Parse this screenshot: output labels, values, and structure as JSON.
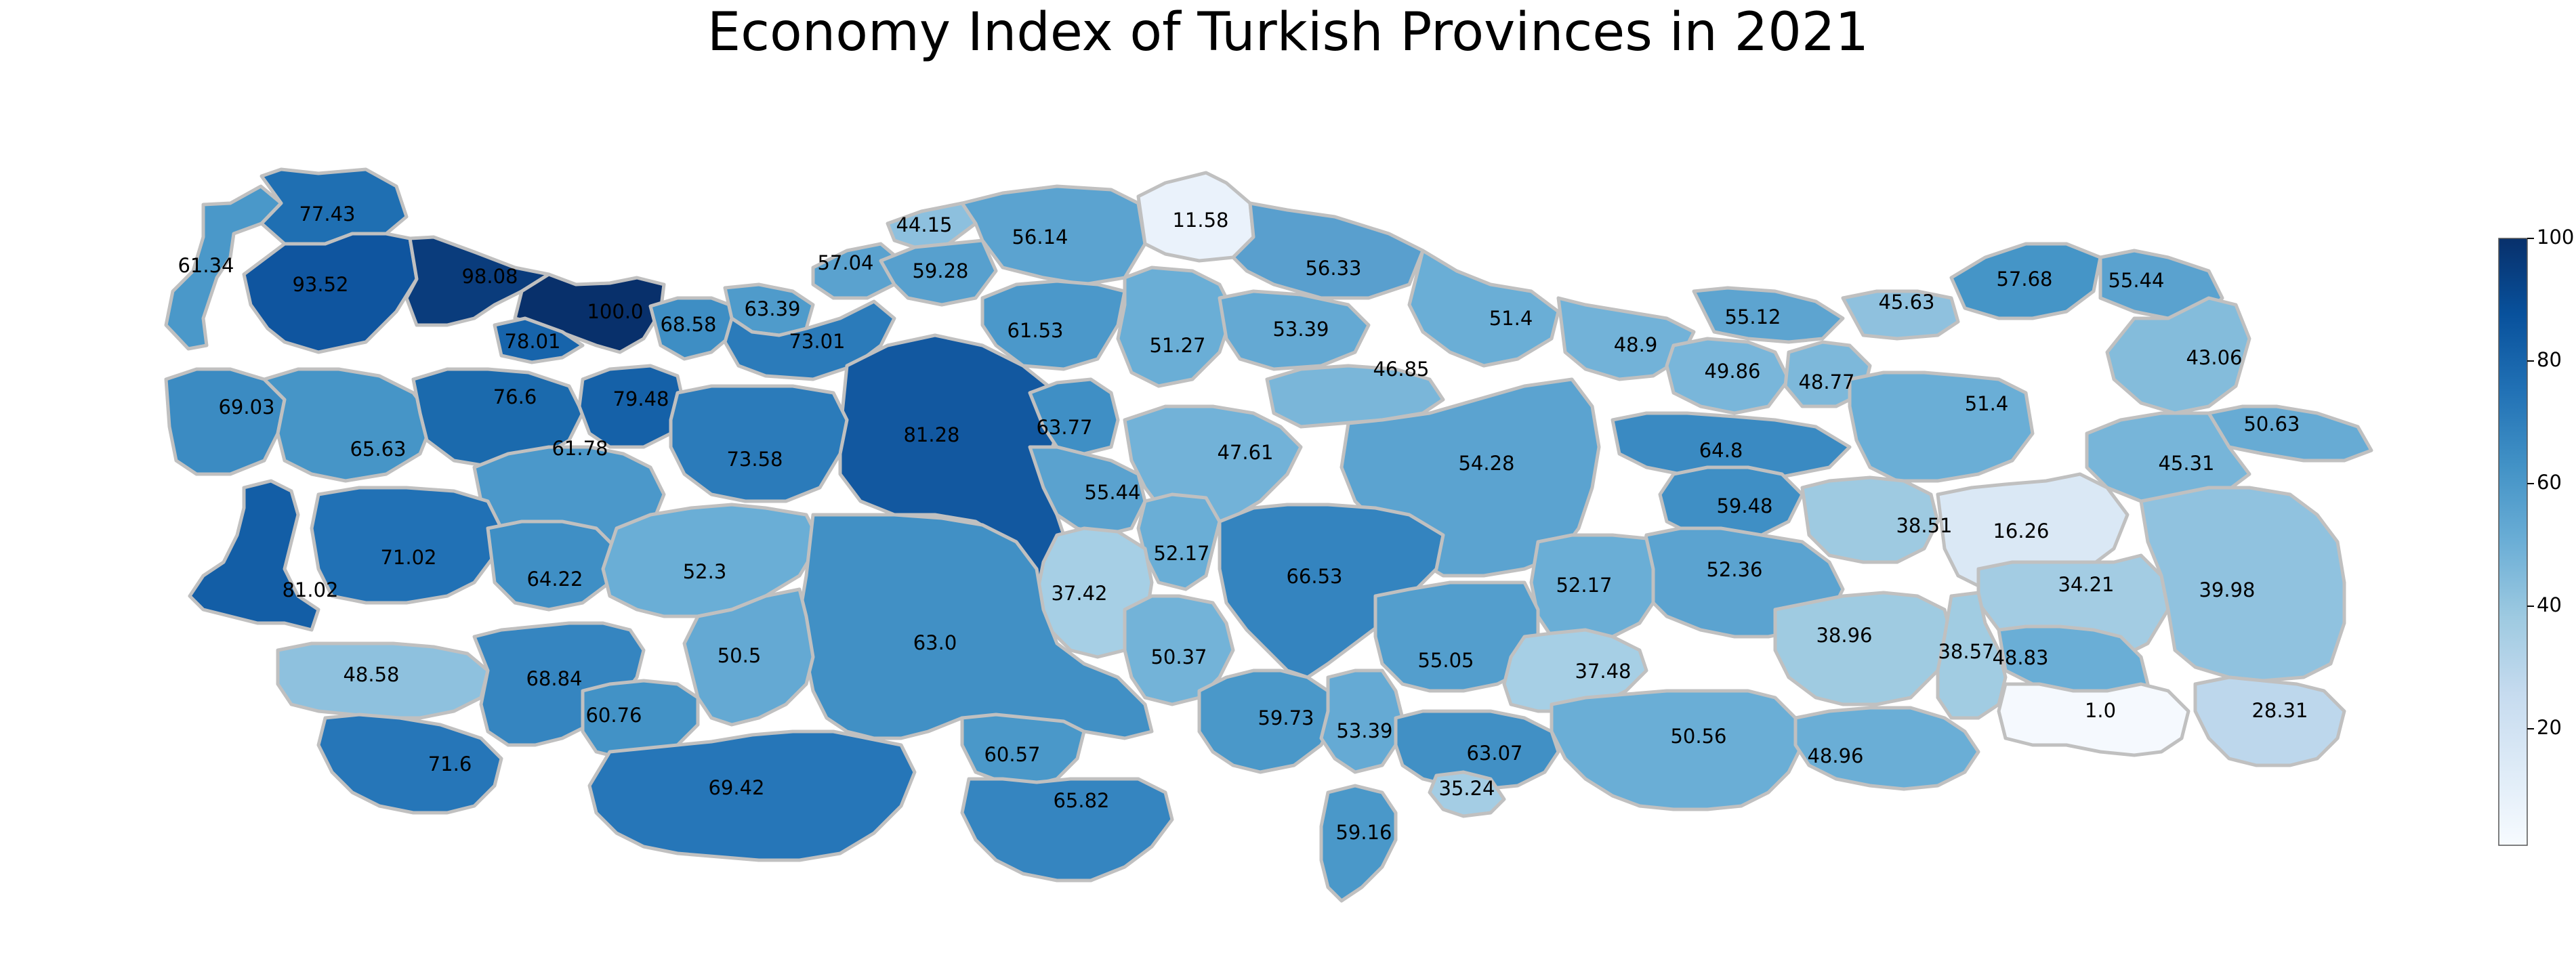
{
  "title": "Economy Index of Turkish Provinces in 2021",
  "colorbar": {
    "min": 1.0,
    "max": 100,
    "ticks": [
      "20",
      "40",
      "60",
      "80",
      "100"
    ],
    "tick_values": [
      20,
      40,
      60,
      80,
      100
    ],
    "colormap": "Blues",
    "color_stops": [
      "#f7fbff",
      "#deebf7",
      "#c6dbef",
      "#9ecae1",
      "#6baed6",
      "#4292c6",
      "#2171b5",
      "#08519c",
      "#08306b"
    ]
  },
  "province_values": [
    "77.43",
    "61.34",
    "93.52",
    "98.08",
    "100.0",
    "78.01",
    "68.58",
    "63.39",
    "57.04",
    "44.15",
    "59.28",
    "56.14",
    "11.58",
    "56.33",
    "73.01",
    "61.53",
    "51.27",
    "53.39",
    "51.4",
    "48.9",
    "55.12",
    "45.63",
    "57.68",
    "55.44",
    "43.06",
    "49.86",
    "48.77",
    "69.03",
    "65.63",
    "76.6",
    "79.48",
    "81.28",
    "63.77",
    "47.61",
    "46.85",
    "54.28",
    "64.8",
    "51.4",
    "50.63",
    "45.31",
    "73.58",
    "61.78",
    "55.44",
    "59.48",
    "38.51",
    "16.26",
    "71.02",
    "64.22",
    "52.3",
    "52.17",
    "66.53",
    "52.36",
    "34.21",
    "39.98",
    "81.02",
    "37.42",
    "63.0",
    "50.5",
    "52.17",
    "38.96",
    "38.57",
    "48.58",
    "68.84",
    "50.37",
    "55.05",
    "37.48",
    "48.83",
    "60.76",
    "59.73",
    "53.39",
    "1.0",
    "28.31",
    "71.6",
    "60.57",
    "50.56",
    "48.96",
    "63.07",
    "69.42",
    "65.82",
    "35.24",
    "59.16"
  ]
}
